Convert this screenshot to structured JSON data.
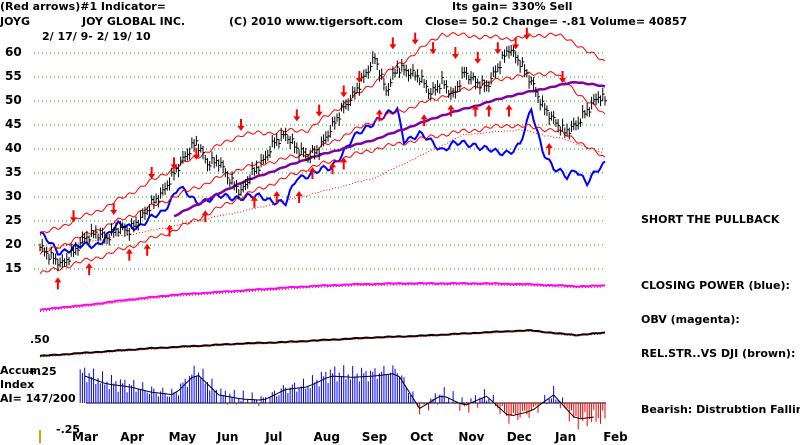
{
  "header": {
    "line1_left": "(Red arrows)#1 Indicator=",
    "gain": "Its gain= 330% Sell",
    "symbol": "JOYG",
    "company": "JOY GLOBAL INC.",
    "copyright": "(C) 2010 www.tigersoft.com",
    "stats": "Close=  50.2  Change= -.81  Volume=  40857",
    "dates": "2/ 17/ 9-  2/ 19/ 10"
  },
  "annotations": {
    "short": "SHORT THE PULLBACK",
    "closing_power": "CLOSING POWER (blue):",
    "obv": "OBV (magenta):",
    "relstr": "REL.STR..VS DJI (brown):",
    "bearish": "Bearish: Distrubtion Falling."
  },
  "accum": {
    "line1": "Accum",
    "line2": "Index",
    "ai": "AI= 147/200",
    "plus": "+.25",
    "minus": "-.25",
    "half": ".50"
  },
  "colors": {
    "price": "#000000",
    "bands": "#ff0000",
    "ma": "#8000a0",
    "closing_power": "#0000ff",
    "obv": "#ff00ff",
    "relstr": "#000000",
    "accum_pos": "#0000ff",
    "accum_neg": "#ff0000",
    "grid": "#00a000"
  },
  "chart_data": {
    "type": "line",
    "title": "JOY GLOBAL INC.",
    "y_ticks": [
      60,
      55,
      50,
      45,
      40,
      35,
      30,
      25,
      20,
      15
    ],
    "ylim": [
      13,
      63
    ],
    "months": [
      "Mar",
      "Apr",
      "May",
      "Jun",
      "Jul",
      "Aug",
      "Sep",
      "Oct",
      "Nov",
      "Dec",
      "Jan",
      "Feb"
    ],
    "series": [
      {
        "name": "price",
        "x": [
          0,
          5,
          10,
          15,
          20,
          25,
          30,
          35,
          40,
          45,
          50,
          55,
          60,
          65,
          70,
          75,
          80,
          85,
          90,
          95,
          100,
          105,
          110,
          115,
          120,
          125,
          130,
          135,
          140,
          145,
          150,
          155,
          160,
          165,
          170,
          175,
          180,
          185,
          190,
          195,
          200,
          205,
          210,
          215,
          220,
          225,
          230,
          235,
          240,
          245,
          250,
          253
        ],
        "values": [
          19.5,
          17.5,
          16,
          18.5,
          21.5,
          22.5,
          21.5,
          23.5,
          23,
          25.5,
          28.5,
          31,
          35,
          38.5,
          41.5,
          37,
          37.5,
          33.5,
          31,
          35,
          37.5,
          41.5,
          43,
          40,
          38.5,
          40,
          44,
          48,
          51,
          55,
          59,
          52,
          57,
          56,
          55,
          51.5,
          54,
          51,
          56,
          54,
          53,
          57,
          61,
          58,
          54,
          49,
          46,
          43.5,
          45,
          48,
          51,
          50.2
        ]
      },
      {
        "name": "ma",
        "x": [
          60,
          90,
          120,
          150,
          180,
          210,
          240,
          253
        ],
        "values": [
          26,
          33,
          38,
          42,
          47,
          51,
          54,
          53
        ]
      },
      {
        "name": "upper_band",
        "x": [
          0,
          30,
          60,
          90,
          120,
          150,
          180,
          210,
          230,
          240,
          253
        ],
        "values": [
          22,
          28,
          36,
          43,
          44,
          54,
          64,
          63,
          64,
          62,
          58
        ]
      },
      {
        "name": "middle_band",
        "x": [
          0,
          30,
          60,
          90,
          120,
          150,
          180,
          210,
          230,
          240,
          253
        ],
        "values": [
          18,
          24,
          30,
          36,
          39,
          46,
          51,
          55,
          56,
          52,
          47
        ]
      },
      {
        "name": "lower_band",
        "x": [
          0,
          30,
          60,
          90,
          120,
          150,
          180,
          210,
          230,
          240,
          253
        ],
        "values": [
          14,
          18,
          23,
          30,
          36,
          40,
          43,
          45,
          44,
          42,
          38
        ]
      }
    ],
    "sell_arrows": [
      {
        "x": 15,
        "y": 26
      },
      {
        "x": 33,
        "y": 27.5
      },
      {
        "x": 50,
        "y": 35
      },
      {
        "x": 60,
        "y": 37
      },
      {
        "x": 70,
        "y": 39
      },
      {
        "x": 90,
        "y": 45
      },
      {
        "x": 115,
        "y": 47
      },
      {
        "x": 125,
        "y": 48
      },
      {
        "x": 136,
        "y": 52
      },
      {
        "x": 143,
        "y": 55
      },
      {
        "x": 158,
        "y": 62
      },
      {
        "x": 168,
        "y": 63
      },
      {
        "x": 176,
        "y": 61
      },
      {
        "x": 186,
        "y": 60
      },
      {
        "x": 196,
        "y": 59
      },
      {
        "x": 205,
        "y": 61
      },
      {
        "x": 213,
        "y": 62
      },
      {
        "x": 218,
        "y": 64
      },
      {
        "x": 234,
        "y": 55
      }
    ],
    "buy_arrows": [
      {
        "x": 8,
        "y": 12
      },
      {
        "x": 22,
        "y": 15
      },
      {
        "x": 40,
        "y": 18
      },
      {
        "x": 48,
        "y": 19
      },
      {
        "x": 58,
        "y": 23
      },
      {
        "x": 74,
        "y": 26
      },
      {
        "x": 96,
        "y": 29
      },
      {
        "x": 106,
        "y": 30
      },
      {
        "x": 116,
        "y": 30
      },
      {
        "x": 122,
        "y": 35
      },
      {
        "x": 131,
        "y": 36
      },
      {
        "x": 136,
        "y": 37
      },
      {
        "x": 152,
        "y": 47
      },
      {
        "x": 172,
        "y": 46
      },
      {
        "x": 184,
        "y": 48
      },
      {
        "x": 195,
        "y": 48
      },
      {
        "x": 201,
        "y": 48
      },
      {
        "x": 210,
        "y": 48
      },
      {
        "x": 228,
        "y": 40
      }
    ],
    "indicators": {
      "closing_power": {
        "x": [
          0,
          8,
          15,
          25,
          35,
          45,
          55,
          62,
          70,
          80,
          90,
          100,
          110,
          115,
          122,
          130,
          140,
          150,
          160,
          163,
          170,
          180,
          185,
          195,
          205,
          210,
          215,
          220,
          225,
          230,
          236,
          240,
          245,
          253
        ],
        "values": [
          22.5,
          18.5,
          19.5,
          20,
          24,
          24,
          27,
          32,
          29,
          30,
          30,
          30,
          28.5,
          34,
          35,
          36,
          42,
          46,
          48,
          42,
          43,
          40,
          41,
          41,
          39,
          39.5,
          41,
          48,
          40,
          36,
          34,
          36,
          33,
          37
        ]
      },
      "closing_power_ma": {
        "x": [
          0,
          50,
          100,
          150,
          190,
          215,
          235,
          253
        ],
        "values": [
          19,
          23,
          28,
          34,
          43,
          44,
          42,
          39
        ]
      },
      "obv": {
        "x": [
          0,
          10,
          20,
          40,
          60,
          80,
          100,
          120,
          140,
          160,
          180,
          200,
          220,
          240,
          253
        ],
        "values": [
          8,
          9.5,
          10.5,
          13.5,
          16,
          17.5,
          19,
          20.5,
          21.5,
          22,
          22,
          22,
          21.5,
          20.5,
          20.8
        ]
      },
      "relstr": {
        "x": [
          0,
          15,
          30,
          50,
          70,
          90,
          110,
          130,
          150,
          170,
          190,
          210,
          220,
          232,
          240,
          253
        ],
        "values": [
          3,
          4.5,
          6,
          8,
          9.5,
          11,
          12,
          13.5,
          15,
          16,
          17.5,
          19,
          19.5,
          17.5,
          16.5,
          18
        ]
      },
      "accum": {
        "x": [
          0,
          10,
          20,
          30,
          40,
          50,
          60,
          70,
          80,
          90,
          100,
          110,
          120,
          130,
          140,
          150,
          160,
          170,
          180,
          190,
          200,
          210,
          220,
          230,
          240,
          250
        ],
        "values": [
          0.1,
          0.18,
          0.2,
          0.14,
          0.12,
          0.08,
          0.06,
          0.22,
          0.06,
          0.03,
          0.02,
          0.1,
          0.12,
          0.2,
          0.19,
          0.2,
          0.22,
          -0.04,
          0.06,
          -0.02,
          0.05,
          -0.1,
          -0.06,
          0.06,
          -0.12,
          -0.1
        ]
      }
    }
  }
}
